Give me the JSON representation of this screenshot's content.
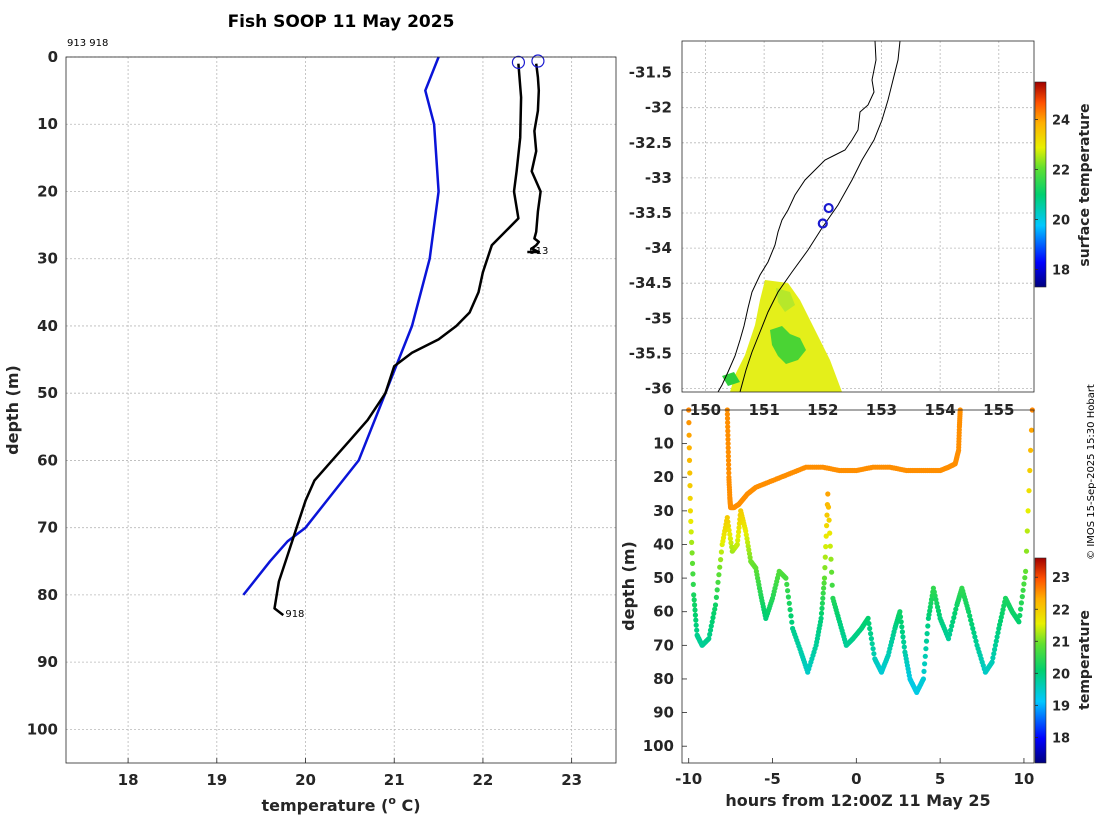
{
  "colors": {
    "profile": "#000000",
    "climatology": "#0a14d8",
    "marker": "#1a1ad0",
    "coast": "#000000"
  },
  "chart_data": [
    {
      "type": "line",
      "name": "temperature-profile",
      "title": "Fish SOOP 11 May 2025",
      "xlabel": "temperature (",
      "xlabel_sup": "o",
      "xlabel_tail": " C)",
      "ylabel": "depth (m)",
      "xlim": [
        17.3,
        23.5
      ],
      "ylim": [
        105,
        0
      ],
      "xticks": [
        "18",
        "19",
        "20",
        "21",
        "22",
        "23"
      ],
      "yticks": [
        "0",
        "10",
        "20",
        "30",
        "40",
        "50",
        "60",
        "70",
        "80",
        "90",
        "100"
      ],
      "top_label": "913 918",
      "series": [
        {
          "name": "climatology",
          "x": [
            21.5,
            21.35,
            21.45,
            21.5,
            21.4,
            21.2,
            20.9,
            20.6,
            20.3,
            20.0,
            19.8,
            19.6,
            19.3
          ],
          "y": [
            0,
            5,
            10,
            20,
            30,
            40,
            50,
            60,
            65,
            70,
            72,
            75,
            80
          ]
        },
        {
          "name": "913",
          "label": "913",
          "x": [
            22.6,
            22.62,
            22.63,
            22.62,
            22.58,
            22.6,
            22.55,
            22.65,
            22.62,
            22.6,
            22.58,
            22.63,
            22.6,
            22.55,
            22.63,
            22.5
          ],
          "y": [
            1,
            3,
            5,
            8,
            11,
            14,
            17,
            20,
            23,
            26,
            27,
            27.5,
            28,
            28.5,
            29,
            29
          ]
        },
        {
          "name": "918",
          "label": "918",
          "x": [
            22.4,
            22.43,
            22.42,
            22.38,
            22.35,
            22.4,
            22.1,
            22.0,
            21.95,
            21.85,
            21.7,
            21.5,
            21.2,
            21.0,
            20.9,
            20.7,
            20.5,
            20.3,
            20.1,
            20.0,
            19.9,
            19.8,
            19.7,
            19.65,
            19.75
          ],
          "y": [
            1,
            6,
            12,
            17,
            20,
            24,
            28,
            32,
            35,
            38,
            40,
            42,
            44,
            46,
            50,
            54,
            57,
            60,
            63,
            66,
            70,
            74,
            78,
            82,
            83
          ]
        }
      ],
      "markers": [
        {
          "x": 22.4,
          "y": 0.8
        },
        {
          "x": 22.62,
          "y": 0.6
        }
      ]
    },
    {
      "type": "heatmap",
      "name": "surface-temperature-map",
      "xlim": [
        149.6,
        155.6
      ],
      "ylim": [
        -36.05,
        -31.05
      ],
      "xticks": [
        "150",
        "151",
        "152",
        "153",
        "154",
        "155"
      ],
      "yticks": [
        "-31.5",
        "-32",
        "-32.5",
        "-33",
        "-33.5",
        "-34",
        "-34.5",
        "-35",
        "-35.5",
        "-36"
      ],
      "colorbar": {
        "label": "surface temperature",
        "range": [
          17.3,
          25.5
        ],
        "ticks": [
          "18",
          "20",
          "22",
          "24"
        ]
      },
      "markers": [
        {
          "lon": 152.1,
          "lat": -33.43
        },
        {
          "lon": 152.0,
          "lat": -33.65
        }
      ]
    },
    {
      "type": "scatter",
      "name": "depth-time",
      "xlabel": "hours from 12:00Z 11 May 25",
      "ylabel": "depth (m)",
      "xlim": [
        -10.4,
        10.6
      ],
      "ylim": [
        105,
        0
      ],
      "xticks": [
        "-10",
        "-5",
        "0",
        "5",
        "10"
      ],
      "yticks": [
        "0",
        "10",
        "20",
        "30",
        "40",
        "50",
        "60",
        "70",
        "80",
        "90",
        "100"
      ],
      "colorbar": {
        "label": "temperature",
        "range": [
          17.2,
          23.6
        ],
        "ticks": [
          "18",
          "19",
          "20",
          "21",
          "22",
          "23"
        ]
      },
      "series": [
        {
          "name": "shallow-fish",
          "temperature": 22.55,
          "x": [
            -7.7,
            -7.65,
            -7.6,
            -7.55,
            -7.5,
            -7.3,
            -7.0,
            -6.5,
            -6,
            -5,
            -4,
            -3,
            -2,
            -1,
            0,
            1,
            2,
            3,
            4,
            5,
            5.5,
            5.9,
            6.1,
            6.15,
            6.2
          ],
          "y": [
            0,
            10,
            20,
            26,
            29,
            29,
            28,
            25,
            23,
            21,
            19,
            17,
            17,
            18,
            18,
            17,
            17,
            18,
            18,
            18,
            17,
            16,
            12,
            5,
            0
          ]
        },
        {
          "name": "deep-fish",
          "x": [
            -10,
            -9.9,
            -9.7,
            -9.5,
            -9.2,
            -8.8,
            -8.4,
            -8.0,
            -7.7,
            -7.4,
            -7.1,
            -6.9,
            -6.6,
            -6.3,
            -6.0,
            -5.7,
            -5.4,
            -5.0,
            -4.6,
            -4.2,
            -3.8,
            -3.3,
            -2.9,
            -2.4,
            -2.1,
            -1.9,
            -1.7,
            -1.4,
            -1.0,
            -0.6,
            -0.2,
            0.3,
            0.7,
            1.1,
            1.5,
            1.9,
            2.3,
            2.6,
            2.9,
            3.2,
            3.6,
            4.0,
            4.3,
            4.6,
            5.0,
            5.5,
            6.0,
            6.3,
            6.7,
            7.2,
            7.7,
            8.1,
            8.5,
            8.9,
            9.3,
            9.7,
            10.1,
            10.5
          ],
          "y": [
            0,
            30,
            55,
            67,
            70,
            68,
            58,
            40,
            32,
            42,
            40,
            30,
            36,
            45,
            47,
            55,
            62,
            56,
            48,
            50,
            65,
            72,
            78,
            70,
            62,
            50,
            25,
            56,
            63,
            70,
            68,
            65,
            62,
            74,
            78,
            73,
            65,
            60,
            72,
            80,
            84,
            80,
            62,
            53,
            62,
            68,
            58,
            53,
            60,
            70,
            78,
            75,
            65,
            56,
            60,
            63,
            48,
            0
          ],
          "temperature": [
            22.6,
            21.8,
            20.3,
            19.9,
            19.8,
            19.9,
            20.2,
            21.5,
            22.0,
            21.2,
            21.4,
            22.0,
            21.6,
            21.0,
            20.9,
            20.4,
            20.0,
            20.4,
            20.8,
            20.7,
            19.9,
            19.7,
            19.5,
            19.8,
            20.0,
            20.9,
            22.4,
            20.4,
            20.0,
            19.8,
            19.9,
            20.0,
            20.1,
            19.6,
            19.4,
            19.6,
            19.9,
            20.2,
            19.7,
            19.3,
            19.3,
            19.4,
            20.0,
            20.5,
            20.0,
            19.8,
            20.2,
            20.5,
            20.2,
            19.8,
            19.5,
            19.6,
            20.0,
            20.3,
            20.2,
            20.1,
            20.9,
            22.6
          ]
        }
      ]
    }
  ],
  "credit": "© IMOS 15-Sep-2025 15:30 Hobart"
}
